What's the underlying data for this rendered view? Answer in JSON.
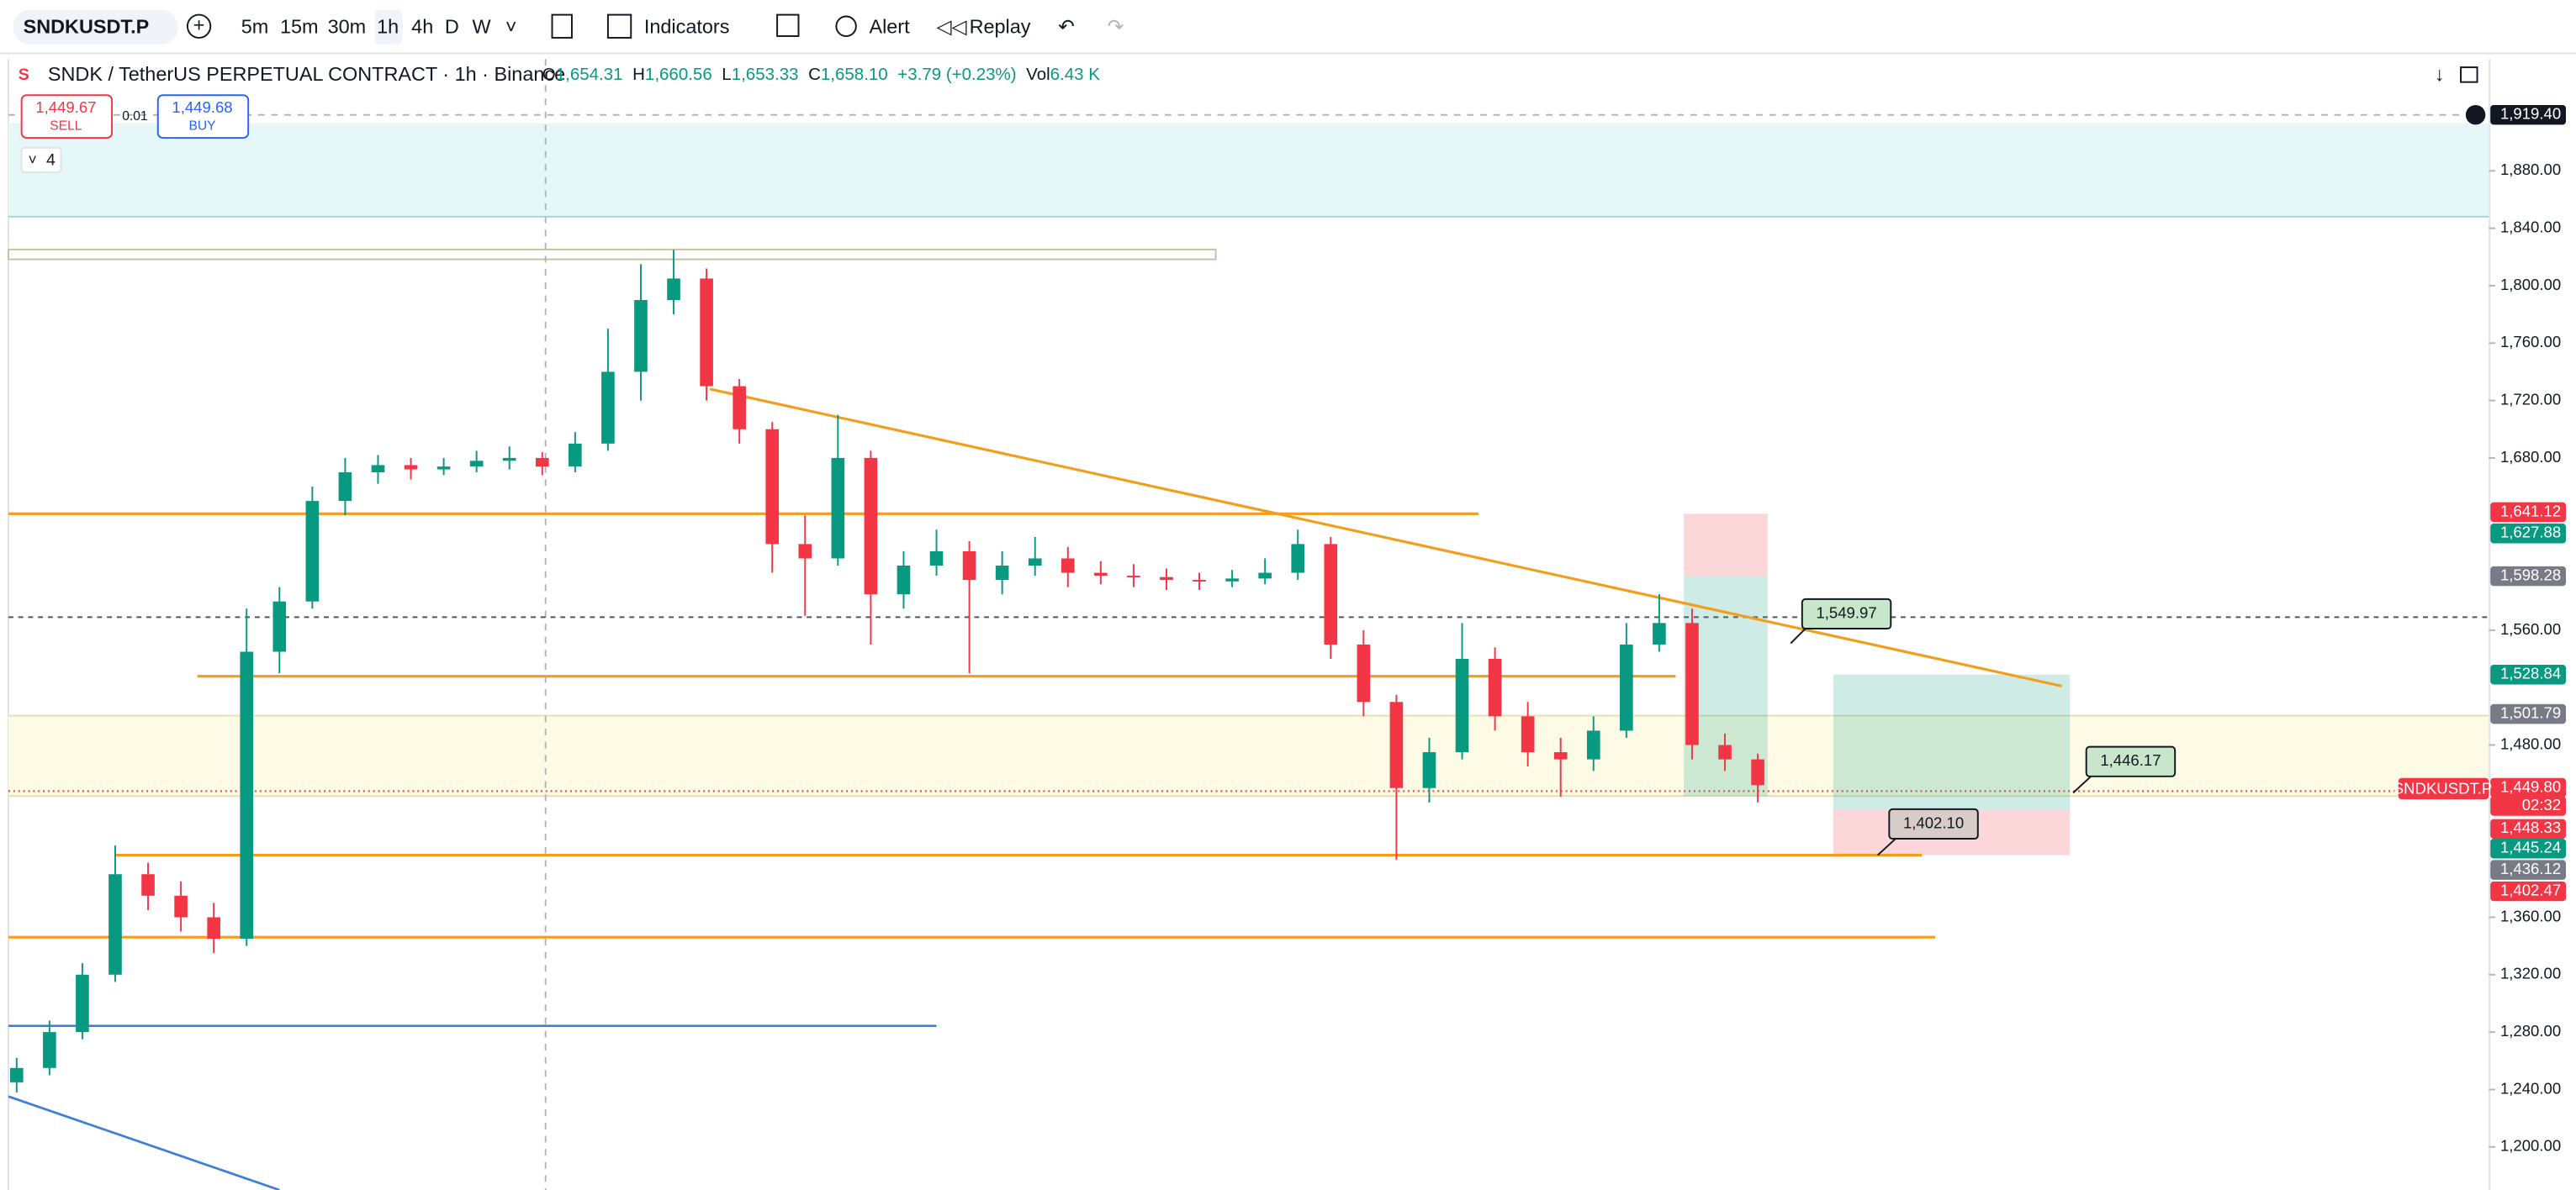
{
  "toolbar": {
    "symbol": "SNDKUSDT.P",
    "intervals": [
      "5m",
      "15m",
      "30m",
      "1h",
      "4h",
      "D",
      "W"
    ],
    "indicators": "Indicators",
    "alert": "Alert",
    "replay": "Replay"
  },
  "legend": {
    "title": "SNDK / TetherUS PERPETUAL CONTRACT · 1h · Binance",
    "o_label": "O",
    "open": "1,654.31",
    "h_label": "H",
    "high": "1,660.56",
    "l_label": "L",
    "low": "1,653.33",
    "c_label": "C",
    "close": "1,658.10",
    "change": "+3.79 (+0.23%)",
    "vol_label": "Vol",
    "volume": "6.43 K"
  },
  "trade": {
    "sell_price": "1,449.67",
    "sell": "SELL",
    "spread": "0.01",
    "buy_price": "1,449.68",
    "buy": "BUY"
  },
  "indicator_count": "4",
  "chart": {
    "ylim": [
      1170,
      1959
    ],
    "up_color": "#089981",
    "down_color": "#f23645",
    "candles": {
      "open": [
        1245,
        1255,
        1280,
        1320,
        1390,
        1375,
        1360,
        1345,
        1545,
        1580,
        1650,
        1670,
        1675,
        1672,
        1674,
        1678,
        1680,
        1674,
        1690,
        1740,
        1790,
        1805,
        1730,
        1700,
        1620,
        1610,
        1680,
        1585,
        1605,
        1615,
        1595,
        1605,
        1610,
        1600,
        1598,
        1597,
        1595,
        1594,
        1596,
        1600,
        1620,
        1550,
        1510,
        1450,
        1475,
        1540,
        1500,
        1475,
        1470,
        1490,
        1550,
        1565,
        1480,
        1470
      ],
      "high": [
        1262,
        1288,
        1328,
        1410,
        1398,
        1385,
        1370,
        1575,
        1590,
        1660,
        1680,
        1682,
        1680,
        1680,
        1685,
        1688,
        1684,
        1698,
        1770,
        1815,
        1825,
        1812,
        1735,
        1705,
        1640,
        1710,
        1685,
        1615,
        1630,
        1622,
        1615,
        1625,
        1618,
        1608,
        1606,
        1603,
        1600,
        1602,
        1610,
        1630,
        1625,
        1560,
        1515,
        1485,
        1565,
        1548,
        1510,
        1485,
        1500,
        1565,
        1585,
        1575,
        1488,
        1474
      ],
      "low": [
        1238,
        1250,
        1275,
        1315,
        1365,
        1350,
        1335,
        1340,
        1530,
        1575,
        1640,
        1662,
        1665,
        1668,
        1670,
        1672,
        1668,
        1670,
        1685,
        1720,
        1780,
        1720,
        1690,
        1600,
        1570,
        1605,
        1550,
        1575,
        1598,
        1530,
        1585,
        1598,
        1590,
        1592,
        1590,
        1588,
        1588,
        1590,
        1592,
        1595,
        1540,
        1500,
        1400,
        1440,
        1470,
        1490,
        1465,
        1444,
        1462,
        1485,
        1545,
        1470,
        1462,
        1440
      ],
      "close": [
        1255,
        1280,
        1320,
        1390,
        1375,
        1360,
        1345,
        1545,
        1580,
        1650,
        1670,
        1675,
        1672,
        1674,
        1678,
        1680,
        1674,
        1690,
        1740,
        1790,
        1805,
        1730,
        1700,
        1620,
        1610,
        1680,
        1585,
        1605,
        1615,
        1595,
        1605,
        1610,
        1600,
        1598,
        1597,
        1595,
        1594,
        1596,
        1600,
        1620,
        1550,
        1510,
        1450,
        1475,
        1540,
        1500,
        1475,
        1470,
        1490,
        1550,
        1565,
        1480,
        1470,
        1452
      ]
    },
    "price_ticks": [
      {
        "value": 1880,
        "label": "1,880.00"
      },
      {
        "value": 1840,
        "label": "1,840.00"
      },
      {
        "value": 1800,
        "label": "1,800.00"
      },
      {
        "value": 1760,
        "label": "1,760.00"
      },
      {
        "value": 1720,
        "label": "1,720.00"
      },
      {
        "value": 1680,
        "label": "1,680.00"
      },
      {
        "value": 1560,
        "label": "1,560.00"
      },
      {
        "value": 1480,
        "label": "1,480.00"
      },
      {
        "value": 1360,
        "label": "1,360.00"
      },
      {
        "value": 1320,
        "label": "1,320.00"
      },
      {
        "value": 1280,
        "label": "1,280.00"
      },
      {
        "value": 1240,
        "label": "1,240.00"
      },
      {
        "value": 1200,
        "label": "1,200.00"
      }
    ],
    "badges": [
      {
        "text": "1,919.40",
        "color": "#131722"
      },
      {
        "text": "1,641.12",
        "color": "#f23645"
      },
      {
        "text": "1,627.88",
        "color": "#089981"
      },
      {
        "text": "1,598.28",
        "color": "#787b86"
      },
      {
        "text": "1,528.84",
        "color": "#089981"
      },
      {
        "text": "1,501.79",
        "color": "#787b86"
      },
      {
        "text": "1,449.80",
        "color": "#f23645"
      },
      {
        "text": "02:32",
        "color": "#f23645"
      },
      {
        "text": "1,448.33",
        "color": "#f23645"
      },
      {
        "text": "1,445.24",
        "color": "#089981"
      },
      {
        "text": "1,436.12",
        "color": "#787b86"
      },
      {
        "text": "1,402.47",
        "color": "#f23645"
      }
    ],
    "symbol_tag": "SNDKUSDT.P",
    "callouts": [
      "1,549.97",
      "1,446.17",
      "1,402.10"
    ]
  }
}
